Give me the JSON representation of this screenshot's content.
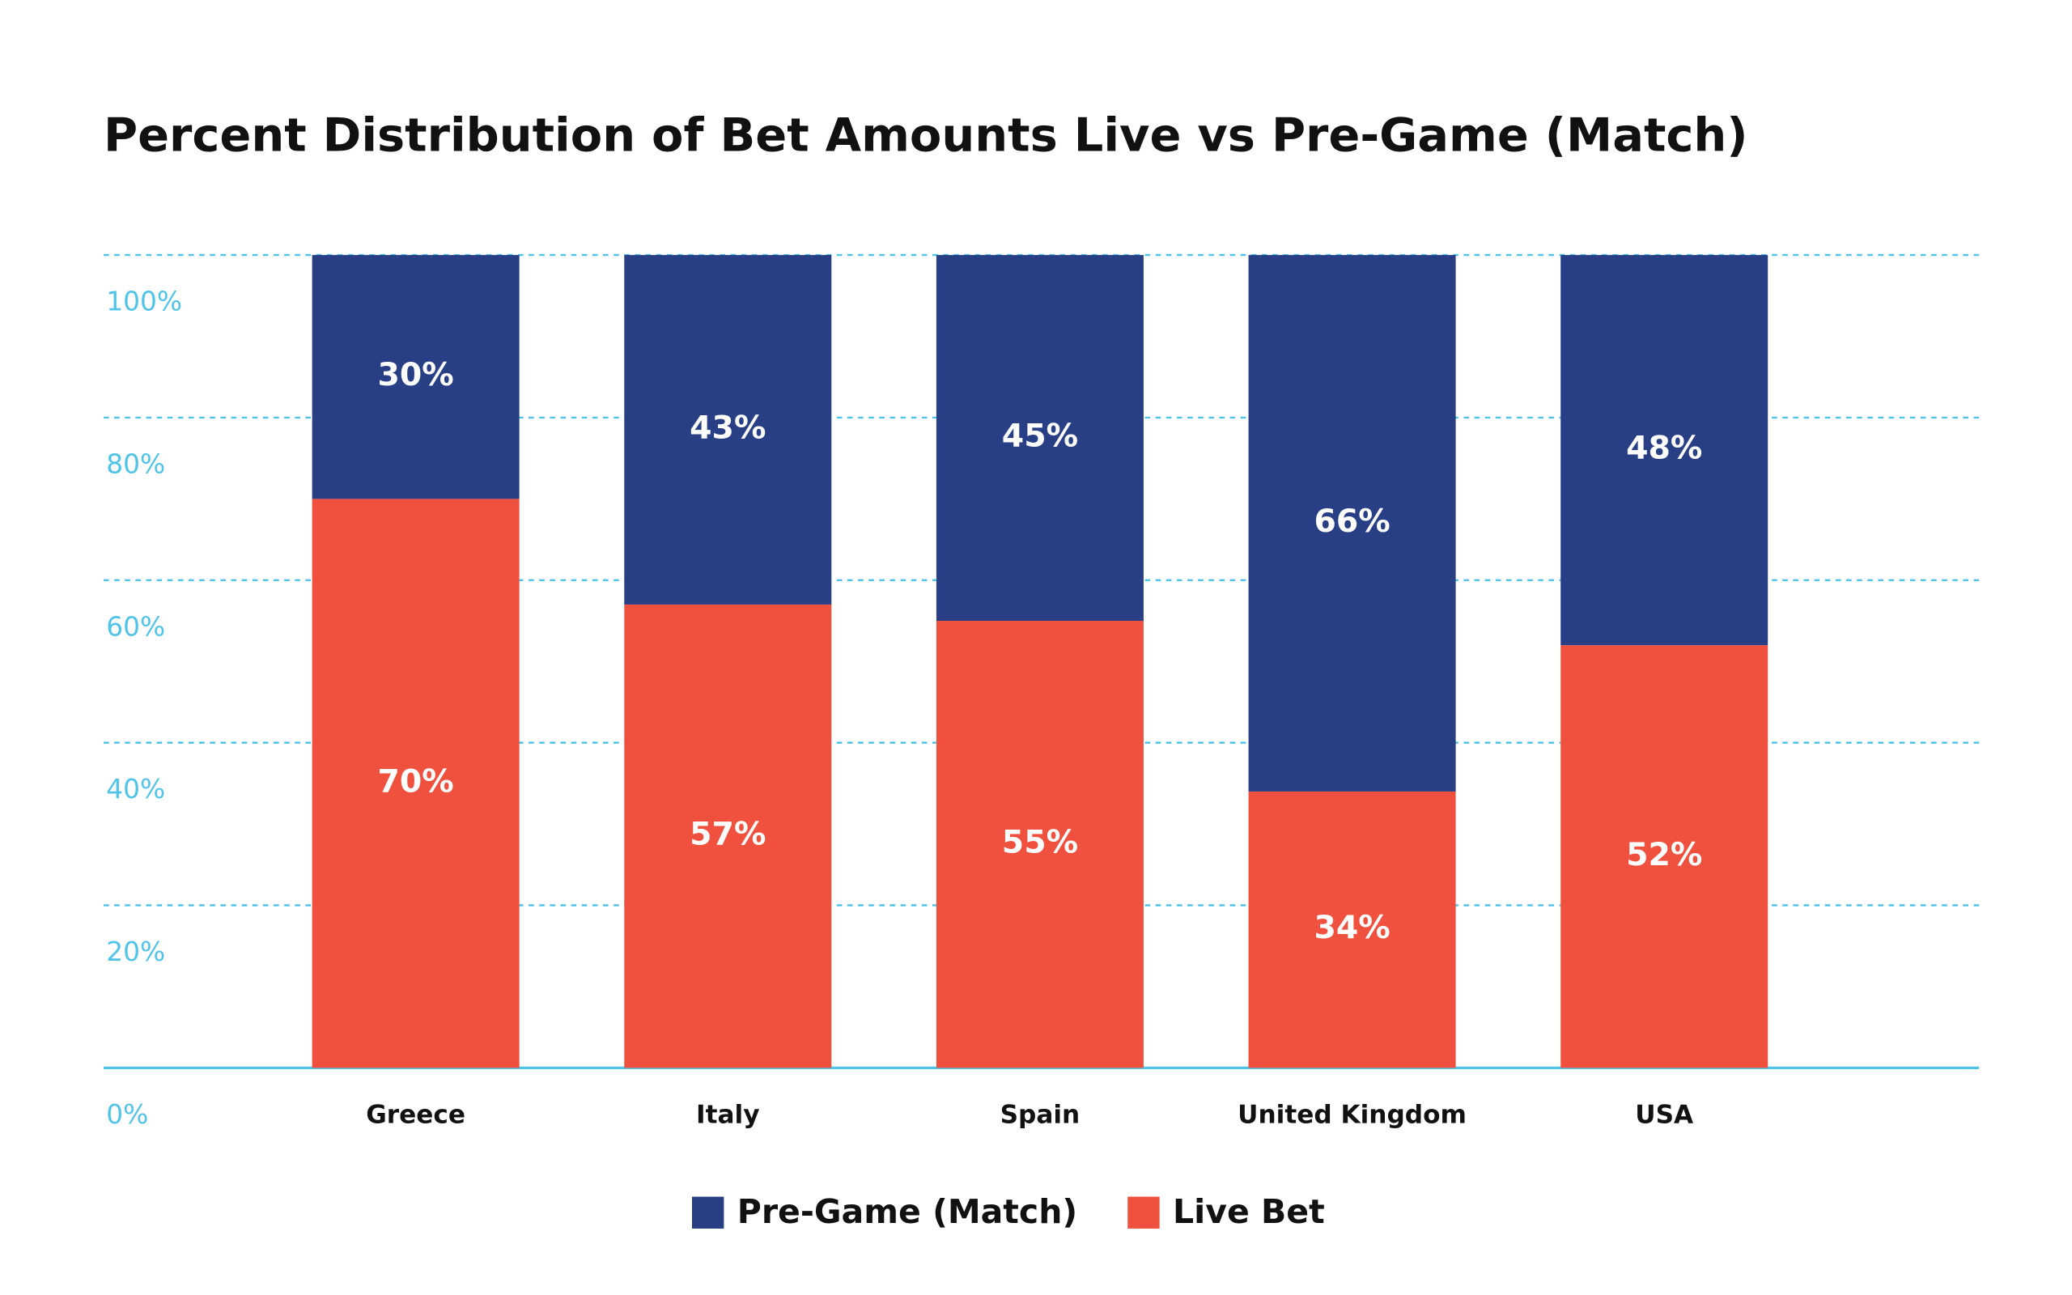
{
  "chart_data": {
    "type": "stacked_bar",
    "title": "Percent Distribution of Bet Amounts Live vs Pre-Game (Match)",
    "categories": [
      "Greece",
      "Italy",
      "Spain",
      "United Kingdom",
      "USA"
    ],
    "series": [
      {
        "name": "Live Bet",
        "color": "#f0503e",
        "values": [
          70,
          57,
          55,
          34,
          52
        ],
        "value_labels": [
          "70%",
          "57%",
          "55%",
          "34%",
          "52%"
        ]
      },
      {
        "name": "Pre-Game (Match)",
        "color": "#283f86",
        "values": [
          30,
          43,
          45,
          66,
          48
        ],
        "value_labels": [
          "30%",
          "43%",
          "45%",
          "66%",
          "48%"
        ]
      }
    ],
    "ylim": [
      0,
      100
    ],
    "yticks": [
      {
        "value": 0,
        "label": "0%"
      },
      {
        "value": 20,
        "label": "20%"
      },
      {
        "value": 40,
        "label": "40%"
      },
      {
        "value": 60,
        "label": "60%"
      },
      {
        "value": 80,
        "label": "80%"
      },
      {
        "value": 100,
        "label": "100%"
      }
    ],
    "grid": true
  }
}
